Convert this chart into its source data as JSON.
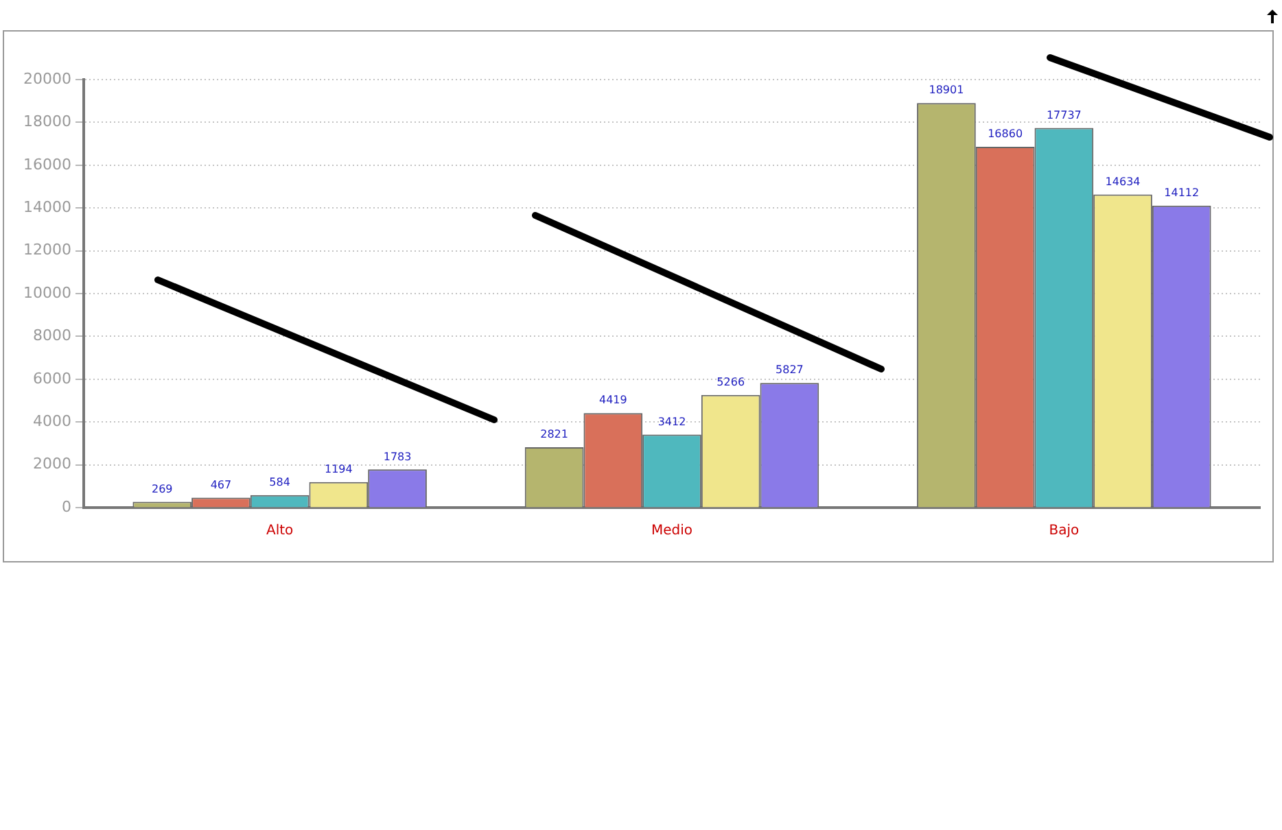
{
  "chart_data": {
    "type": "bar",
    "categories": [
      "Alto",
      "Medio",
      "Bajo"
    ],
    "series": [
      {
        "color": "#b5b56e",
        "values": [
          269,
          2821,
          18901
        ]
      },
      {
        "color": "#d9705a",
        "values": [
          467,
          4419,
          16860
        ]
      },
      {
        "color": "#4fb8be",
        "values": [
          584,
          3412,
          17737
        ]
      },
      {
        "color": "#f0e68c",
        "values": [
          1194,
          5266,
          14634
        ]
      },
      {
        "color": "#8a7ae8",
        "values": [
          1783,
          5827,
          14112
        ]
      }
    ],
    "ylim": [
      0,
      20000
    ],
    "yticks": [
      0,
      2000,
      4000,
      6000,
      8000,
      10000,
      12000,
      14000,
      16000,
      18000,
      20000
    ],
    "grid": "y",
    "data_labels": true,
    "legend": false
  }
}
